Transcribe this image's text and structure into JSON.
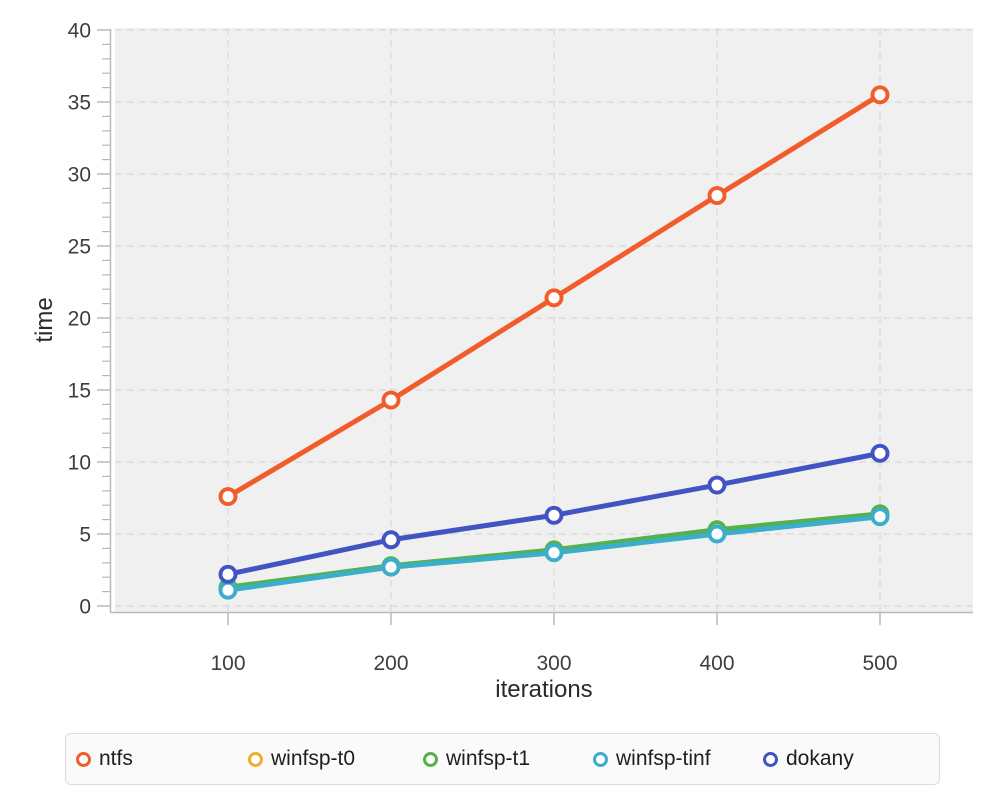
{
  "chart_data": {
    "type": "line",
    "title": "",
    "xlabel": "iterations",
    "ylabel": "time",
    "x": [
      100,
      200,
      300,
      400,
      500
    ],
    "xlim": [
      30,
      557
    ],
    "ylim": [
      0,
      40
    ],
    "y_major_step": 5,
    "y_minor_step": 1,
    "grid": "dashed",
    "legend_position": "bottom",
    "series": [
      {
        "name": "ntfs",
        "color": "#f25c2a",
        "values": [
          7.6,
          14.3,
          21.4,
          28.5,
          35.5
        ]
      },
      {
        "name": "winfsp-t0",
        "color": "#efae2f",
        "values": [
          1.2,
          2.7,
          3.7,
          5.1,
          6.3
        ]
      },
      {
        "name": "winfsp-t1",
        "color": "#56b14b",
        "values": [
          1.3,
          2.8,
          3.9,
          5.3,
          6.4
        ]
      },
      {
        "name": "winfsp-tinf",
        "color": "#3aaeca",
        "values": [
          1.1,
          2.7,
          3.7,
          5.0,
          6.2
        ]
      },
      {
        "name": "dokany",
        "color": "#4253c3",
        "values": [
          2.2,
          4.6,
          6.3,
          8.4,
          10.6
        ]
      }
    ]
  },
  "style": {
    "panel_bg": "#f0f0f0",
    "grid_color": "#dcdcdc",
    "axis_color": "#b9b9b9",
    "tick_label_color": "#3e3e3e",
    "title_color": "#2a2a2a",
    "legend_bg": "#fafafa",
    "legend_border": "#dcdcdc"
  }
}
